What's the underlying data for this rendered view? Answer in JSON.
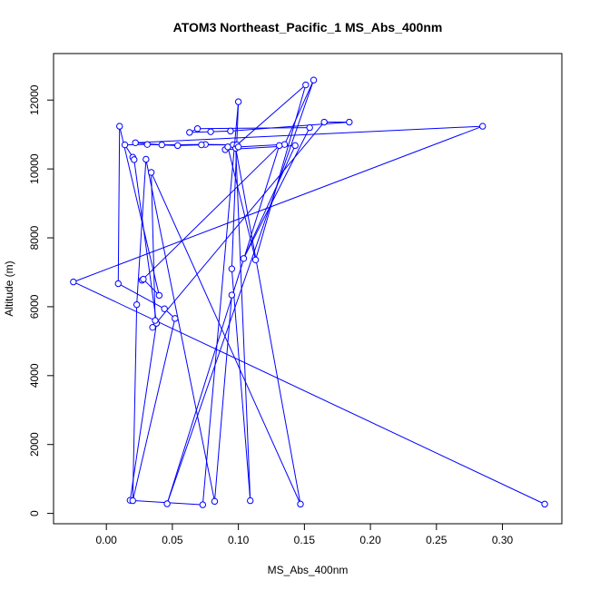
{
  "chart_data": {
    "type": "line",
    "title": "ATOM3 Northeast_Pacific_1 MS_Abs_400nm",
    "xlabel": "MS_Abs_400nm",
    "ylabel": "Altitude (m)",
    "xlim": [
      -0.04,
      0.345
    ],
    "ylim": [
      -300,
      13350
    ],
    "x_ticks": [
      0.0,
      0.05,
      0.1,
      0.15,
      0.2,
      0.25,
      0.3
    ],
    "x_tick_labels": [
      "0.00",
      "0.05",
      "0.10",
      "0.15",
      "0.20",
      "0.25",
      "0.30"
    ],
    "y_ticks": [
      0,
      2000,
      4000,
      6000,
      8000,
      10000,
      12000
    ],
    "y_tick_labels": [
      "0",
      "2000",
      "4000",
      "6000",
      "8000",
      "10000",
      "12000"
    ],
    "grid": false,
    "legend": "none",
    "series_color": "#0000ff",
    "series": [
      {
        "x": [
          0.332,
          -0.025,
          0.285,
          0.022,
          0.042,
          0.075,
          0.096,
          0.072,
          0.054,
          0.031,
          0.014,
          0.02,
          0.021,
          0.038,
          0.018,
          0.073,
          0.1,
          0.095,
          0.109,
          0.098,
          0.147,
          0.034,
          0.037,
          0.035,
          0.165,
          0.184,
          0.094,
          0.079,
          0.063,
          0.069,
          0.154,
          0.104,
          0.143,
          0.09,
          0.092,
          0.113,
          0.151,
          0.099,
          0.1,
          0.135,
          0.157,
          0.046,
          0.131,
          0.027,
          0.028,
          0.04,
          0.01,
          0.009,
          0.044,
          0.052,
          0.02,
          0.023,
          0.03,
          0.082,
          0.095
        ],
        "y": [
          270,
          6720,
          11240,
          10760,
          10700,
          10710,
          10700,
          10700,
          10680,
          10710,
          10700,
          10340,
          10270,
          5520,
          380,
          250,
          11950,
          7100,
          370,
          10600,
          270,
          9900,
          5600,
          5400,
          11360,
          11360,
          11100,
          11080,
          11060,
          11170,
          11200,
          7400,
          10680,
          10560,
          10640,
          7360,
          12440,
          10700,
          10640,
          10710,
          12580,
          280,
          10680,
          6770,
          6800,
          6330,
          11240,
          6670,
          5940,
          5660,
          370,
          6060,
          10280,
          350,
          6340
        ]
      }
    ]
  }
}
